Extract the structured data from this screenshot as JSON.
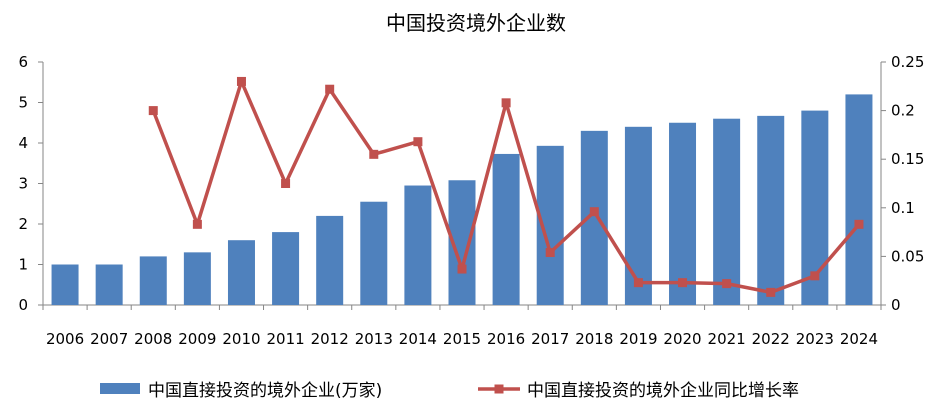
{
  "chart_data": {
    "type": "bar+line",
    "title": "中国投资境外企业数",
    "categories": [
      "2006",
      "2007",
      "2008",
      "2009",
      "2010",
      "2011",
      "2012",
      "2013",
      "2014",
      "2015",
      "2016",
      "2017",
      "2018",
      "2019",
      "2020",
      "2021",
      "2022",
      "2023",
      "2024"
    ],
    "series": [
      {
        "name": "中国直接投资的境外企业(万家)",
        "type": "bar",
        "axis": "left",
        "color": "#4F81BD",
        "values": [
          1.0,
          1.0,
          1.2,
          1.3,
          1.6,
          1.8,
          2.2,
          2.55,
          2.95,
          3.08,
          3.73,
          3.93,
          4.3,
          4.4,
          4.5,
          4.6,
          4.67,
          4.8,
          5.2
        ]
      },
      {
        "name": "中国直接投资的境外企业同比增长率",
        "type": "line",
        "axis": "right",
        "color": "#C0504D",
        "values": [
          null,
          null,
          0.2,
          0.083,
          0.23,
          0.125,
          0.222,
          0.155,
          0.168,
          0.037,
          0.208,
          0.054,
          0.096,
          0.023,
          0.023,
          0.022,
          0.013,
          0.03,
          0.083
        ]
      }
    ],
    "y_left": {
      "min": 0,
      "max": 6,
      "ticks": [
        "0",
        "1",
        "2",
        "3",
        "4",
        "5",
        "6"
      ]
    },
    "y_right": {
      "min": 0,
      "max": 0.25,
      "ticks": [
        "0",
        "0.05",
        "0.1",
        "0.15",
        "0.2",
        "0.25"
      ]
    },
    "grid": false,
    "legend": "bottom"
  }
}
